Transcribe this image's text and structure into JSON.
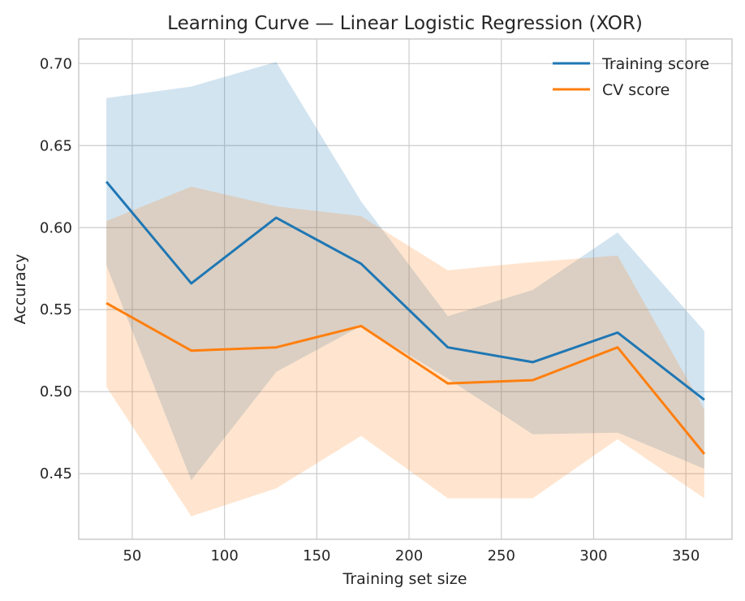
{
  "chart_data": {
    "type": "line",
    "title": "Learning Curve — Linear Logistic Regression (XOR)",
    "xlabel": "Training set size",
    "ylabel": "Accuracy",
    "xlim": [
      21,
      375
    ],
    "ylim": [
      0.41,
      0.715
    ],
    "xticks": [
      50,
      100,
      150,
      200,
      250,
      300,
      350
    ],
    "yticks": [
      0.45,
      0.5,
      0.55,
      0.6,
      0.65,
      0.7
    ],
    "ytick_labels": [
      "0.45",
      "0.50",
      "0.55",
      "0.60",
      "0.65",
      "0.70"
    ],
    "grid": true,
    "legend_position": "top-right",
    "x": [
      36,
      82,
      128,
      174,
      221,
      267,
      313,
      360
    ],
    "series": [
      {
        "name": "Training score",
        "color": "#1f77b4",
        "values": [
          0.628,
          0.566,
          0.606,
          0.578,
          0.527,
          0.518,
          0.536,
          0.495
        ],
        "band_upper": [
          0.679,
          0.686,
          0.701,
          0.616,
          0.546,
          0.562,
          0.597,
          0.537
        ],
        "band_lower": [
          0.577,
          0.446,
          0.512,
          0.54,
          0.508,
          0.474,
          0.475,
          0.453
        ]
      },
      {
        "name": "CV score",
        "color": "#ff7f0e",
        "values": [
          0.554,
          0.525,
          0.527,
          0.54,
          0.505,
          0.507,
          0.527,
          0.462
        ],
        "band_upper": [
          0.604,
          0.625,
          0.613,
          0.607,
          0.574,
          0.579,
          0.583,
          0.489
        ],
        "band_lower": [
          0.503,
          0.424,
          0.441,
          0.473,
          0.435,
          0.435,
          0.471,
          0.435
        ]
      }
    ]
  }
}
